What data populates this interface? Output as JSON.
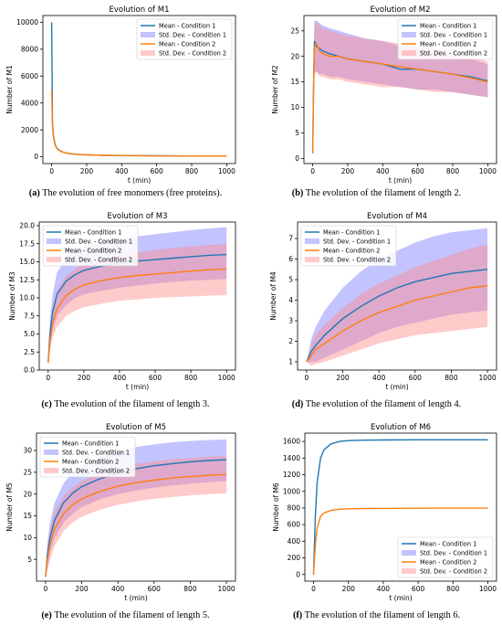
{
  "captions": [
    {
      "tag": "(a)",
      "text": "The evolution of free monomers (free proteins)."
    },
    {
      "tag": "(b)",
      "text": "The evolution of the filament of length 2."
    },
    {
      "tag": "(c)",
      "text": "The evolution of the filament of length 3."
    },
    {
      "tag": "(d)",
      "text": "The evolution of the filament of length 4."
    },
    {
      "tag": "(e)",
      "text": "The evolution of the filament of length 5."
    },
    {
      "tag": "(f)",
      "text": "The evolution of the filament of length 6."
    }
  ],
  "colors": {
    "condition1": "#1f77b4",
    "condition2": "#ff7f0e",
    "band1": "#7b7bff",
    "band2": "#ff8a8a"
  },
  "chart_data": [
    {
      "type": "line",
      "title": "Evolution of M1",
      "xlabel": "t (min)",
      "ylabel": "Number of M1",
      "xlim": [
        -50,
        1050
      ],
      "ylim": [
        -500,
        10500
      ],
      "xticks": [
        0,
        200,
        400,
        600,
        800,
        1000
      ],
      "yticks": [
        0,
        2000,
        4000,
        6000,
        8000,
        10000
      ],
      "legend": "top-right",
      "x": [
        0,
        5,
        10,
        20,
        30,
        50,
        75,
        100,
        150,
        200,
        300,
        400,
        600,
        800,
        1000
      ],
      "series": [
        {
          "name": "Mean - Condition 1",
          "values": [
            10000,
            2500,
            1600,
            900,
            650,
            430,
            310,
            250,
            180,
            150,
            110,
            95,
            75,
            65,
            60
          ]
        },
        {
          "name": "Mean - Condition 2",
          "values": [
            5000,
            2300,
            1500,
            850,
            620,
            410,
            300,
            240,
            175,
            145,
            108,
            92,
            73,
            63,
            58
          ]
        }
      ],
      "bands": []
    },
    {
      "type": "line",
      "title": "Evolution of M2",
      "xlabel": "t (min)",
      "ylabel": "Number of M2",
      "xlim": [
        -50,
        1050
      ],
      "ylim": [
        -1,
        28
      ],
      "xticks": [
        0,
        200,
        400,
        600,
        800,
        1000
      ],
      "yticks": [
        0,
        5,
        10,
        15,
        20,
        25
      ],
      "legend": "top-right",
      "x": [
        0,
        5,
        10,
        20,
        40,
        60,
        100,
        150,
        200,
        300,
        400,
        500,
        600,
        700,
        800,
        900,
        1000
      ],
      "series": [
        {
          "name": "Mean - Condition 1",
          "values": [
            1,
            15,
            23,
            22,
            21.5,
            21,
            20.5,
            20,
            19.5,
            19,
            18.5,
            17.5,
            17.5,
            17,
            16.5,
            16,
            15.2
          ]
        },
        {
          "name": "Mean - Condition 2",
          "values": [
            1,
            14,
            22,
            22.5,
            21,
            20.5,
            20,
            20,
            19.5,
            19,
            18.5,
            18,
            17.5,
            17,
            16.5,
            15.8,
            15
          ]
        }
      ],
      "bands": [
        {
          "name": "Std. Dev. - Condition 1",
          "lower": [
            1,
            10,
            17,
            17,
            16.5,
            16.5,
            16,
            16,
            15.5,
            15,
            14.5,
            14,
            13.5,
            13.5,
            13,
            12.5,
            12
          ],
          "upper": [
            1,
            20,
            27,
            27,
            26.5,
            26,
            25.5,
            25,
            24.5,
            23.5,
            23,
            22,
            21.5,
            20.5,
            20,
            19.5,
            18.5
          ]
        },
        {
          "name": "Std. Dev. - Condition 2",
          "lower": [
            1,
            10,
            16,
            17,
            16,
            16,
            15.5,
            15.5,
            15,
            14.5,
            14,
            14,
            13.5,
            13,
            13,
            12.5,
            12
          ],
          "upper": [
            1,
            19,
            26,
            27,
            26,
            25.5,
            25,
            24.5,
            24,
            23.5,
            23,
            22.5,
            22,
            21.5,
            21,
            20,
            19
          ]
        }
      ]
    },
    {
      "type": "line",
      "title": "Evolution of M3",
      "xlabel": "t (min)",
      "ylabel": "Number of M3",
      "xlim": [
        -50,
        1050
      ],
      "ylim": [
        0,
        20.5
      ],
      "xticks": [
        0,
        200,
        400,
        600,
        800,
        1000
      ],
      "yticks": [
        0.0,
        2.5,
        5.0,
        7.5,
        10.0,
        12.5,
        15.0,
        17.5,
        20.0
      ],
      "legend": "top-left",
      "x": [
        0,
        10,
        25,
        50,
        100,
        150,
        200,
        300,
        400,
        500,
        600,
        700,
        800,
        900,
        1000
      ],
      "series": [
        {
          "name": "Mean - Condition 1",
          "values": [
            1,
            5,
            8,
            10.5,
            12.3,
            13.2,
            13.8,
            14.4,
            14.8,
            15.1,
            15.3,
            15.5,
            15.7,
            15.9,
            16
          ]
        },
        {
          "name": "Mean - Condition 2",
          "values": [
            1,
            4,
            6.5,
            8.5,
            10.3,
            11.2,
            11.8,
            12.4,
            12.8,
            13.1,
            13.3,
            13.5,
            13.7,
            13.9,
            14
          ]
        }
      ],
      "bands": [
        {
          "name": "Std. Dev. - Condition 1",
          "lower": [
            1,
            3,
            5.5,
            7.5,
            9,
            10,
            10.5,
            11,
            11.4,
            11.7,
            12,
            12.2,
            12.4,
            12.5,
            12.6
          ],
          "upper": [
            1,
            7,
            10.5,
            13.5,
            15.5,
            16.5,
            17,
            17.8,
            18.2,
            18.5,
            18.8,
            19.1,
            19.4,
            19.6,
            19.8
          ]
        },
        {
          "name": "Std. Dev. - Condition 2",
          "lower": [
            1,
            2.5,
            4.5,
            6,
            7.5,
            8.2,
            8.7,
            9.2,
            9.6,
            9.8,
            10,
            10.1,
            10.2,
            10.3,
            10.4
          ],
          "upper": [
            1,
            5.5,
            8.5,
            11,
            13,
            14,
            14.7,
            15.4,
            15.9,
            16.3,
            16.6,
            16.9,
            17.1,
            17.3,
            17.5
          ]
        }
      ]
    },
    {
      "type": "line",
      "title": "Evolution of M4",
      "xlabel": "t (min)",
      "ylabel": "Number of M4",
      "xlim": [
        -50,
        1050
      ],
      "ylim": [
        0.6,
        7.8
      ],
      "xticks": [
        0,
        200,
        400,
        600,
        800,
        1000
      ],
      "yticks": [
        1,
        2,
        3,
        4,
        5,
        6,
        7
      ],
      "legend": "top-left",
      "x": [
        0,
        25,
        50,
        100,
        200,
        300,
        400,
        500,
        600,
        700,
        800,
        900,
        1000
      ],
      "series": [
        {
          "name": "Mean - Condition 1",
          "values": [
            1,
            1.5,
            1.8,
            2.3,
            3.1,
            3.7,
            4.2,
            4.6,
            4.9,
            5.1,
            5.3,
            5.4,
            5.5
          ]
        },
        {
          "name": "Mean - Condition 2",
          "values": [
            1,
            1.3,
            1.6,
            1.9,
            2.5,
            3.0,
            3.4,
            3.7,
            4.0,
            4.2,
            4.4,
            4.6,
            4.7
          ]
        }
      ],
      "bands": [
        {
          "name": "Std. Dev. - Condition 1",
          "lower": [
            1,
            1,
            1,
            1.2,
            1.6,
            2.0,
            2.4,
            2.7,
            2.9,
            3.1,
            3.3,
            3.4,
            3.5
          ],
          "upper": [
            1,
            2.1,
            2.7,
            3.5,
            4.6,
            5.4,
            6.0,
            6.4,
            6.8,
            7.1,
            7.3,
            7.4,
            7.5
          ]
        },
        {
          "name": "Std. Dev. - Condition 2",
          "lower": [
            1,
            0.8,
            0.9,
            1.0,
            1.3,
            1.6,
            1.9,
            2.1,
            2.3,
            2.4,
            2.5,
            2.6,
            2.7
          ],
          "upper": [
            1,
            1.8,
            2.3,
            2.8,
            3.6,
            4.3,
            4.8,
            5.2,
            5.6,
            5.9,
            6.2,
            6.5,
            6.7
          ]
        }
      ]
    },
    {
      "type": "line",
      "title": "Evolution of M5",
      "xlabel": "t (min)",
      "ylabel": "Number of M5",
      "xlim": [
        -50,
        1050
      ],
      "ylim": [
        0,
        34
      ],
      "xticks": [
        0,
        200,
        400,
        600,
        800,
        1000
      ],
      "yticks": [
        5,
        10,
        15,
        20,
        25,
        30
      ],
      "legend": "top-left",
      "x": [
        0,
        10,
        25,
        50,
        100,
        150,
        200,
        300,
        400,
        500,
        600,
        700,
        800,
        900,
        1000
      ],
      "series": [
        {
          "name": "Mean - Condition 1",
          "values": [
            1,
            6,
            10,
            14,
            18,
            20.2,
            21.7,
            23.5,
            24.8,
            25.8,
            26.5,
            27,
            27.4,
            27.7,
            27.9
          ]
        },
        {
          "name": "Mean - Condition 2",
          "values": [
            1,
            5,
            8.5,
            12,
            15.5,
            17.5,
            18.9,
            20.6,
            21.8,
            22.6,
            23.2,
            23.7,
            24,
            24.3,
            24.5
          ]
        }
      ],
      "bands": [
        {
          "name": "Std. Dev. - Condition 1",
          "lower": [
            1,
            3,
            6.5,
            10,
            13.5,
            15.5,
            17,
            18.8,
            20,
            20.8,
            21.5,
            22,
            22.4,
            22.7,
            23
          ],
          "upper": [
            1,
            9,
            13.5,
            18,
            22.5,
            25,
            26.5,
            28.5,
            29.8,
            30.8,
            31.4,
            31.9,
            32.2,
            32.4,
            32.6
          ]
        },
        {
          "name": "Std. Dev. - Condition 2",
          "lower": [
            1,
            2.5,
            5,
            8,
            11.5,
            13.5,
            14.8,
            16.4,
            17.5,
            18.3,
            18.9,
            19.3,
            19.7,
            20,
            20.2
          ],
          "upper": [
            1,
            7.5,
            12,
            16,
            19.5,
            21.5,
            23,
            24.8,
            26,
            26.9,
            27.5,
            28,
            28.3,
            28.6,
            28.8
          ]
        }
      ]
    },
    {
      "type": "line",
      "title": "Evolution of M6",
      "xlabel": "t (min)",
      "ylabel": "Number of M6",
      "xlim": [
        -50,
        1050
      ],
      "ylim": [
        -80,
        1700
      ],
      "xticks": [
        0,
        200,
        400,
        600,
        800,
        1000
      ],
      "yticks": [
        0,
        200,
        400,
        600,
        800,
        1000,
        1200,
        1400,
        1600
      ],
      "legend": "bottom-right",
      "x": [
        0,
        10,
        20,
        40,
        60,
        100,
        150,
        200,
        300,
        400,
        600,
        800,
        1000
      ],
      "series": [
        {
          "name": "Mean - Condition 1",
          "values": [
            0,
            700,
            1100,
            1400,
            1500,
            1570,
            1600,
            1610,
            1615,
            1618,
            1620,
            1620,
            1620
          ]
        },
        {
          "name": "Mean - Condition 2",
          "values": [
            0,
            350,
            550,
            700,
            740,
            770,
            785,
            790,
            793,
            795,
            797,
            798,
            798
          ]
        }
      ],
      "bands": []
    }
  ]
}
